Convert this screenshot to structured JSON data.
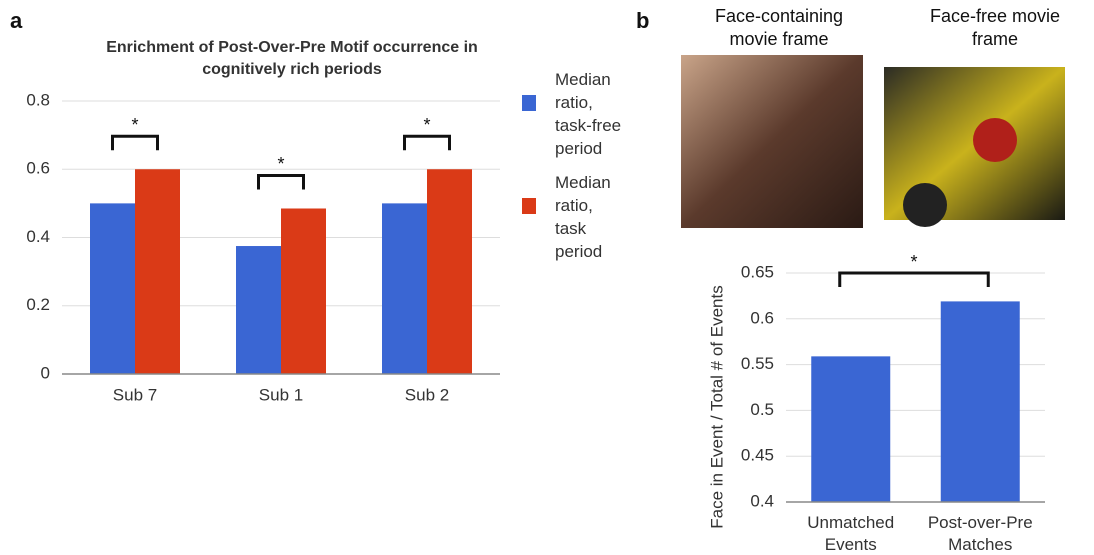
{
  "panel_labels": [
    "a",
    "b"
  ],
  "images": [
    {
      "caption": "Face-containing movie frame"
    },
    {
      "caption": "Face-free movie frame"
    }
  ],
  "chart_data": [
    {
      "type": "bar",
      "title": "Enrichment of Post-Over-Pre Motif occurrence in cognitively rich periods",
      "categories": [
        "Sub 7",
        "Sub 1",
        "Sub 2"
      ],
      "series": [
        {
          "name": "Median ratio, task-free period",
          "color": "#3a66d3",
          "values": [
            0.5,
            0.375,
            0.5
          ]
        },
        {
          "name": "Median ratio, task period",
          "color": "#da3a17",
          "values": [
            0.6,
            0.485,
            0.6
          ]
        }
      ],
      "ylim": [
        0,
        0.8
      ],
      "yticks": [
        0,
        0.2,
        0.4,
        0.6,
        0.8
      ],
      "grid": true,
      "legend": "right",
      "annotations": [
        "*",
        "*",
        "*"
      ]
    },
    {
      "type": "bar",
      "ylabel": "Face in Event / Total # of Events",
      "categories": [
        "Unmatched Events",
        "Post-over-Pre Matches"
      ],
      "values": [
        0.559,
        0.619
      ],
      "color": "#3a66d3",
      "ylim": [
        0.4,
        0.65
      ],
      "yticks": [
        0.4,
        0.45,
        0.5,
        0.55,
        0.6,
        0.65
      ],
      "grid": true,
      "annotations": [
        "*"
      ]
    }
  ]
}
